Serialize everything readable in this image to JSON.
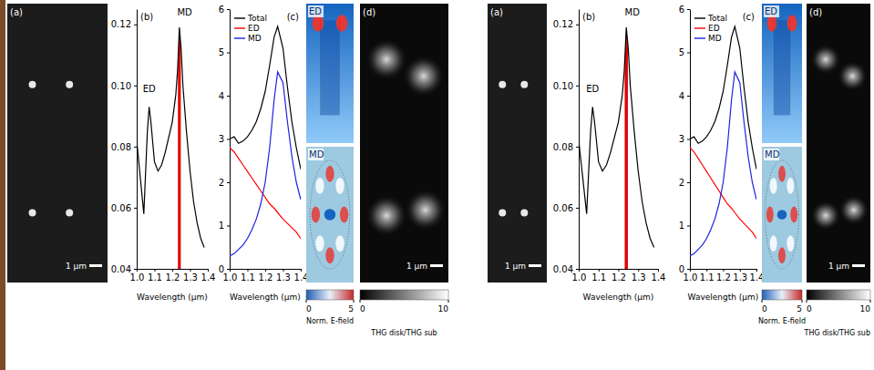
{
  "chart_data": [
    {
      "type": "line",
      "label": "(b)",
      "x_label": "Wavelength (µm)",
      "x": [
        1.0,
        1.02,
        1.04,
        1.06,
        1.07,
        1.08,
        1.1,
        1.12,
        1.14,
        1.16,
        1.18,
        1.2,
        1.22,
        1.23,
        1.24,
        1.25,
        1.26,
        1.28,
        1.3,
        1.32,
        1.34,
        1.36,
        1.38
      ],
      "series": [
        {
          "color": "#000000",
          "values": [
            0.082,
            0.07,
            0.058,
            0.085,
            0.093,
            0.088,
            0.075,
            0.072,
            0.074,
            0.078,
            0.083,
            0.088,
            0.097,
            0.105,
            0.119,
            0.112,
            0.1,
            0.085,
            0.072,
            0.062,
            0.055,
            0.05,
            0.047
          ]
        }
      ],
      "highlight": {
        "x": [
          1.232,
          1.248
        ],
        "color": "#e00000"
      },
      "annotations": [
        {
          "text": "ED",
          "x": 1.07,
          "y": 0.098
        },
        {
          "text": "MD",
          "x": 1.27,
          "y": 0.123
        }
      ],
      "xlim": [
        1.0,
        1.4
      ],
      "xticks": [
        {
          "value": 1.0,
          "label": "1.0"
        },
        1.1,
        1.2,
        1.3,
        1.4
      ],
      "ylim": [
        0.04,
        0.125
      ],
      "yticks": [
        0.04,
        0.06,
        0.08,
        {
          "value": 0.1,
          "label": "0.10"
        },
        0.12
      ]
    },
    {
      "type": "line",
      "label": "(c)",
      "x_label": "Wavelength (µm)",
      "legend": "upper left",
      "x": [
        1.0,
        1.025,
        1.05,
        1.075,
        1.1,
        1.125,
        1.15,
        1.175,
        1.2,
        1.225,
        1.25,
        1.27,
        1.3,
        1.325,
        1.35,
        1.375,
        1.4
      ],
      "series": [
        {
          "name": "Total",
          "color": "#000000",
          "values": [
            3.0,
            3.05,
            2.9,
            2.95,
            3.05,
            3.2,
            3.4,
            3.7,
            4.1,
            4.7,
            5.35,
            5.6,
            5.1,
            4.2,
            3.4,
            2.8,
            2.3
          ]
        },
        {
          "name": "ED",
          "color": "#ff0000",
          "values": [
            2.8,
            2.7,
            2.55,
            2.4,
            2.25,
            2.1,
            1.95,
            1.8,
            1.65,
            1.5,
            1.4,
            1.3,
            1.15,
            1.05,
            0.95,
            0.85,
            0.7
          ]
        },
        {
          "name": "MD",
          "color": "#2020e0",
          "values": [
            0.3,
            0.35,
            0.45,
            0.55,
            0.7,
            0.9,
            1.15,
            1.5,
            2.0,
            2.8,
            3.9,
            4.55,
            4.3,
            3.4,
            2.6,
            2.0,
            1.6
          ]
        }
      ],
      "xlim": [
        1.0,
        1.4
      ],
      "xticks": [
        {
          "value": 1.0,
          "label": "1.0"
        },
        1.1,
        1.2,
        1.3,
        1.4
      ],
      "ylim": [
        0,
        6
      ],
      "yticks": [
        0,
        1,
        2,
        3,
        4,
        5,
        6
      ]
    },
    {
      "type": "line",
      "label": "(b)",
      "x_label": "Wavelength (µm)",
      "x": [
        1.0,
        1.02,
        1.04,
        1.06,
        1.07,
        1.08,
        1.1,
        1.12,
        1.14,
        1.16,
        1.18,
        1.2,
        1.22,
        1.23,
        1.24,
        1.25,
        1.26,
        1.28,
        1.3,
        1.32,
        1.34,
        1.36,
        1.38
      ],
      "series": [
        {
          "color": "#000000",
          "values": [
            0.082,
            0.07,
            0.058,
            0.085,
            0.093,
            0.088,
            0.075,
            0.072,
            0.074,
            0.078,
            0.083,
            0.088,
            0.097,
            0.105,
            0.119,
            0.112,
            0.1,
            0.085,
            0.072,
            0.062,
            0.055,
            0.05,
            0.047
          ]
        }
      ],
      "highlight": {
        "x": [
          1.232,
          1.248
        ],
        "color": "#e00000"
      },
      "annotations": [
        {
          "text": "ED",
          "x": 1.07,
          "y": 0.098
        },
        {
          "text": "MD",
          "x": 1.27,
          "y": 0.123
        }
      ],
      "xlim": [
        1.0,
        1.4
      ],
      "xticks": [
        {
          "value": 1.0,
          "label": "1.0"
        },
        1.1,
        1.2,
        1.3,
        1.4
      ],
      "ylim": [
        0.04,
        0.125
      ],
      "yticks": [
        0.04,
        0.06,
        0.08,
        {
          "value": 0.1,
          "label": "0.10"
        },
        0.12
      ]
    },
    {
      "type": "line",
      "label": "(c)",
      "x_label": "Wavelength (µm)",
      "legend": "upper left",
      "x": [
        1.0,
        1.025,
        1.05,
        1.075,
        1.1,
        1.125,
        1.15,
        1.175,
        1.2,
        1.225,
        1.25,
        1.27,
        1.3,
        1.325,
        1.35,
        1.375,
        1.4
      ],
      "series": [
        {
          "name": "Total",
          "color": "#000000",
          "values": [
            3.0,
            3.05,
            2.9,
            2.95,
            3.05,
            3.2,
            3.4,
            3.7,
            4.1,
            4.7,
            5.35,
            5.6,
            5.1,
            4.2,
            3.4,
            2.8,
            2.3
          ]
        },
        {
          "name": "ED",
          "color": "#ff0000",
          "values": [
            2.8,
            2.7,
            2.55,
            2.4,
            2.25,
            2.1,
            1.95,
            1.8,
            1.65,
            1.5,
            1.4,
            1.3,
            1.15,
            1.05,
            0.95,
            0.85,
            0.7
          ]
        },
        {
          "name": "MD",
          "color": "#2020e0",
          "values": [
            0.3,
            0.35,
            0.45,
            0.55,
            0.7,
            0.9,
            1.15,
            1.5,
            2.0,
            2.8,
            3.9,
            4.55,
            4.3,
            3.4,
            2.6,
            2.0,
            1.6
          ]
        }
      ],
      "xlim": [
        1.0,
        1.4
      ],
      "xticks": [
        {
          "value": 1.0,
          "label": "1.0"
        },
        1.1,
        1.2,
        1.3,
        1.4
      ],
      "ylim": [
        0,
        6
      ],
      "yticks": [
        0,
        1,
        2,
        3,
        4,
        5,
        6
      ]
    }
  ],
  "sem_images": [
    {
      "label": "(a)",
      "scale_bar": "1 µm"
    },
    {
      "label": "(a)",
      "scale_bar": "1 µm"
    }
  ],
  "field_maps": [
    {
      "label": "ED"
    },
    {
      "label": "MD"
    },
    {
      "label": "ED"
    },
    {
      "label": "MD"
    }
  ],
  "thg_images": [
    {
      "label": "(d)",
      "scale_bar": "1 µm"
    },
    {
      "label": "(d)",
      "scale_bar": "1 µm"
    }
  ],
  "color_bars": [
    {
      "label": "Norm. E-field",
      "range": [
        0,
        5
      ],
      "ticks": [
        0,
        5
      ],
      "colors": [
        "#1f5fb4",
        "#e8f1fa",
        "#c62828"
      ]
    },
    {
      "label": "THG disk/THG sub",
      "range": [
        0,
        10
      ],
      "ticks": [
        0,
        10
      ],
      "colors": [
        "#000000",
        "#ffffff"
      ]
    },
    {
      "label": "Norm. E-field",
      "range": [
        0,
        5
      ],
      "ticks": [
        0,
        5
      ],
      "colors": [
        "#1f5fb4",
        "#e8f1fa",
        "#c62828"
      ]
    },
    {
      "label": "THG disk/THG sub",
      "range": [
        0,
        10
      ],
      "ticks": [
        0,
        10
      ],
      "colors": [
        "#000000",
        "#ffffff"
      ]
    }
  ]
}
